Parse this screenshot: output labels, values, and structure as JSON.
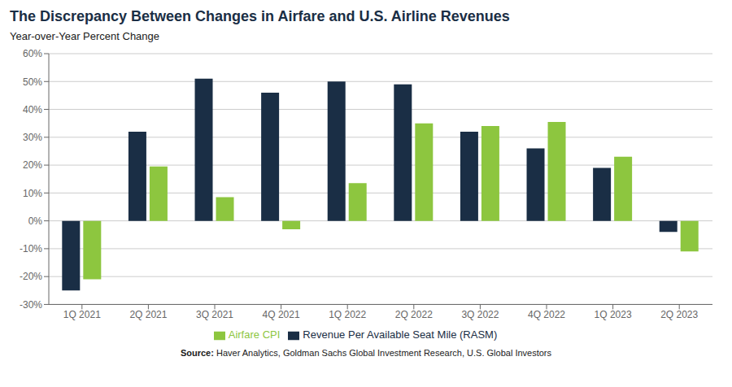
{
  "chart_data": {
    "type": "bar",
    "title": "The Discrepancy Between Changes in Airfare and U.S. Airline Revenues",
    "subtitle": "Year-over-Year Percent Change",
    "annotations": [
      "Source: Haver Analytics, Goldman Sachs Global Investment Research, U.S. Global Investors"
    ],
    "categories": [
      "1Q 2021",
      "2Q 2021",
      "3Q 2021",
      "4Q 2021",
      "1Q 2022",
      "2Q 2022",
      "3Q 2022",
      "4Q 2022",
      "1Q 2023",
      "2Q 2023"
    ],
    "series": [
      {
        "name": "Revenue Per Available Seat Mile (RASM)",
        "color": "#1a2e45",
        "values": [
          -25,
          32,
          51,
          46,
          50,
          49,
          32,
          26,
          19,
          -4
        ]
      },
      {
        "name": "Airfare CPI",
        "color": "#8dc63f",
        "values": [
          -21,
          19.5,
          8.5,
          -3,
          13.5,
          35,
          34,
          35.5,
          23,
          -11
        ]
      }
    ],
    "ylim": [
      -30,
      60
    ],
    "yticks": [
      {
        "value": -30,
        "label": "-30%"
      },
      {
        "value": -20,
        "label": "-20%"
      },
      {
        "value": -10,
        "label": "-10%"
      },
      {
        "value": 0,
        "label": "0%"
      },
      {
        "value": 10,
        "label": "10%"
      },
      {
        "value": 20,
        "label": "20%"
      },
      {
        "value": 30,
        "label": "30%"
      },
      {
        "value": 40,
        "label": "40%"
      },
      {
        "value": 50,
        "label": "50%"
      },
      {
        "value": 60,
        "label": "60%"
      }
    ],
    "grid": true,
    "legend": "bottom"
  }
}
